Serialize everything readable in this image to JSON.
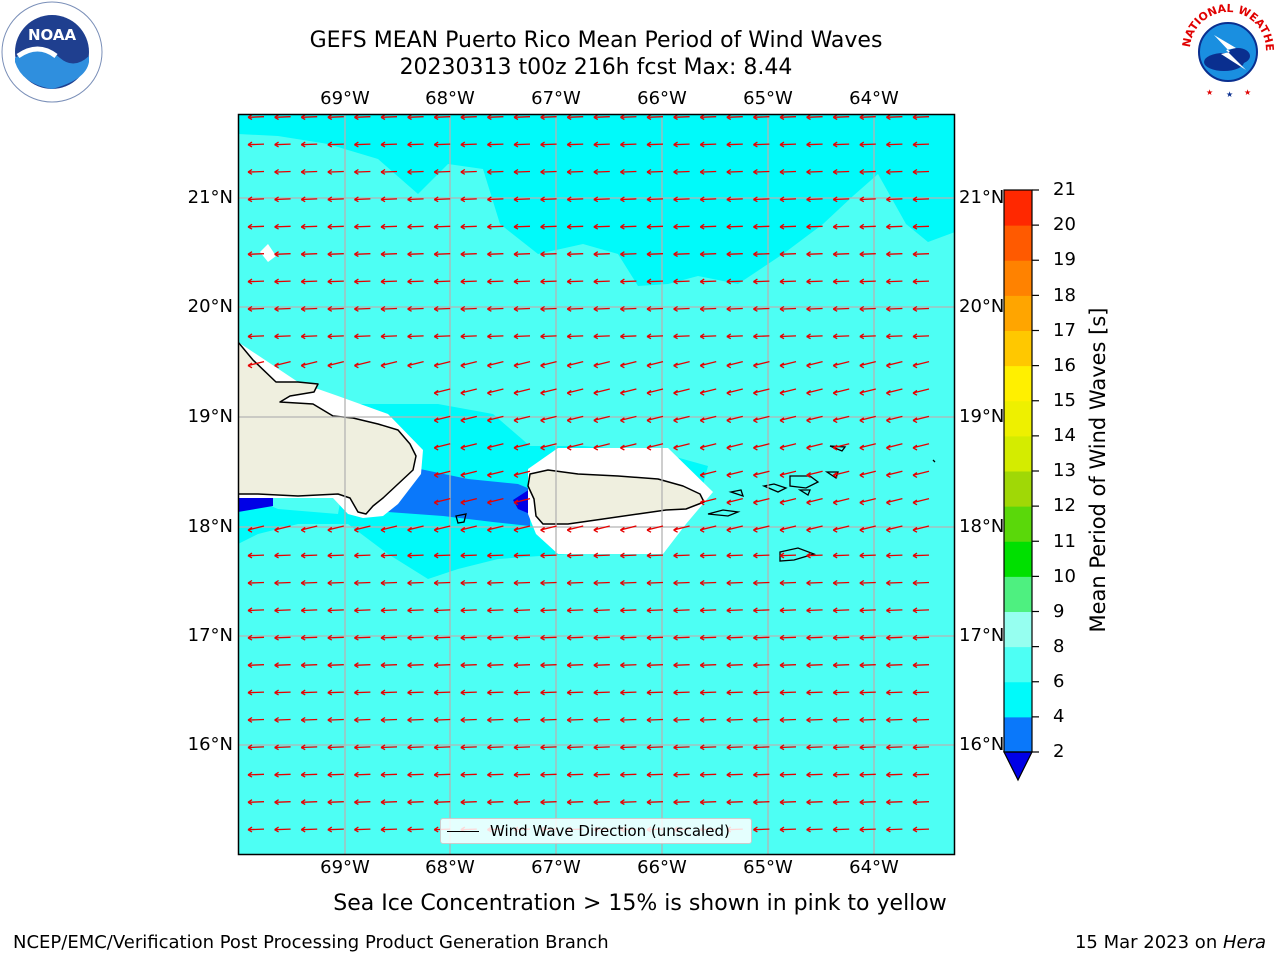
{
  "header": {
    "title_line1": "GEFS MEAN Puerto Rico Mean Period of Wind Waves",
    "title_line2": "20230313 t00z 216h fcst   Max: 8.44"
  },
  "logos": {
    "left": {
      "name": "noaa-logo",
      "text": "NOAA"
    },
    "right": {
      "name": "national-weather-service-logo",
      "text": "NATIONAL WEATHER SERVICE"
    }
  },
  "map": {
    "lon_ticks": [
      "69°W",
      "68°W",
      "67°W",
      "66°W",
      "65°W",
      "64°W"
    ],
    "lat_ticks": [
      "21°N",
      "20°N",
      "19°N",
      "18°N",
      "17°N",
      "16°N"
    ],
    "colors": {
      "ocean_6_8": "#4dfff4",
      "ocean_4_6": "#00fafa",
      "ocean_2_4": "#0a78fa",
      "ocean_lt2": "#0000e6",
      "land": "#efefdf",
      "arrows": "#e60000",
      "grid": "#b4b4b4"
    },
    "legend_text": "Wind Wave Direction (unscaled)"
  },
  "colorbar": {
    "title": "Mean Period of Wind Waves [s]",
    "labels": [
      "2",
      "4",
      "6",
      "8",
      "9",
      "10",
      "11",
      "12",
      "13",
      "14",
      "15",
      "16",
      "17",
      "18",
      "19",
      "20",
      "21"
    ],
    "colors": [
      "#0a78fa",
      "#00fafa",
      "#4dfff4",
      "#96fff0",
      "#4ef080",
      "#00e000",
      "#5ad80a",
      "#a0d806",
      "#d4ec00",
      "#eef000",
      "#fff000",
      "#ffc800",
      "#ffa500",
      "#ff8200",
      "#ff5a00",
      "#ff2800"
    ],
    "under_color": "#0000e6"
  },
  "notes": {
    "sea_ice": "Sea Ice Concentration > 15% is shown in pink to yellow",
    "footer_left": "NCEP/EMC/Verification Post Processing Product Generation Branch",
    "footer_date": "15 Mar 2023 on ",
    "footer_host": "Hera"
  }
}
